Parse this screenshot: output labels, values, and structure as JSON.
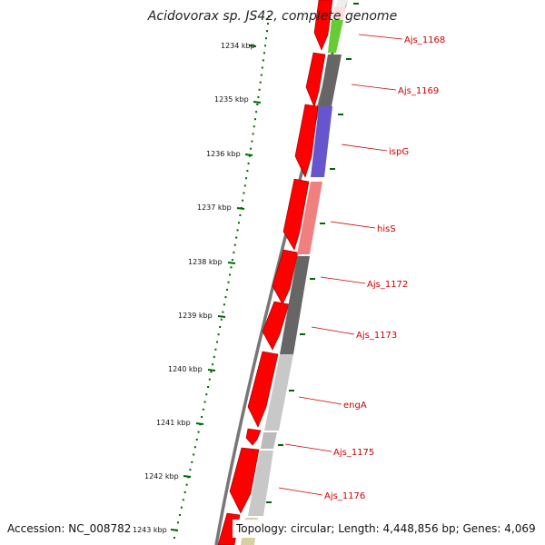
{
  "title": "Acidovorax sp. JS42, complete genome",
  "footer": {
    "accession": "Accession: NC_008782",
    "topology": "Topology: circular; Length: 4,448,856 bp; Genes: 4,069"
  },
  "ticks": [
    "1234 kbp",
    "1235 kbp",
    "1236 kbp",
    "1237 kbp",
    "1238 kbp",
    "1239 kbp",
    "1240 kbp",
    "1241 kbp",
    "1242 kbp",
    "1243 kbp"
  ],
  "genes": [
    {
      "name": "Ajs_1168",
      "color": "#66cc33"
    },
    {
      "name": "Ajs_1169",
      "color": "#666666"
    },
    {
      "name": "ispG",
      "color": "#6655cc"
    },
    {
      "name": "hisS",
      "color": "#f08080"
    },
    {
      "name": "Ajs_1172",
      "color": "#666666"
    },
    {
      "name": "Ajs_1173",
      "color": "#666666"
    },
    {
      "name": "engA",
      "color": "#c8c8c8"
    },
    {
      "name": "Ajs_1175",
      "color": "#bbbbbb"
    },
    {
      "name": "Ajs_1176",
      "color": "#c8c8c8"
    }
  ],
  "colors": {
    "forward_strand": "#ff0000",
    "backbone": "#888888",
    "tick": "#006600",
    "label": "#cc0000"
  }
}
